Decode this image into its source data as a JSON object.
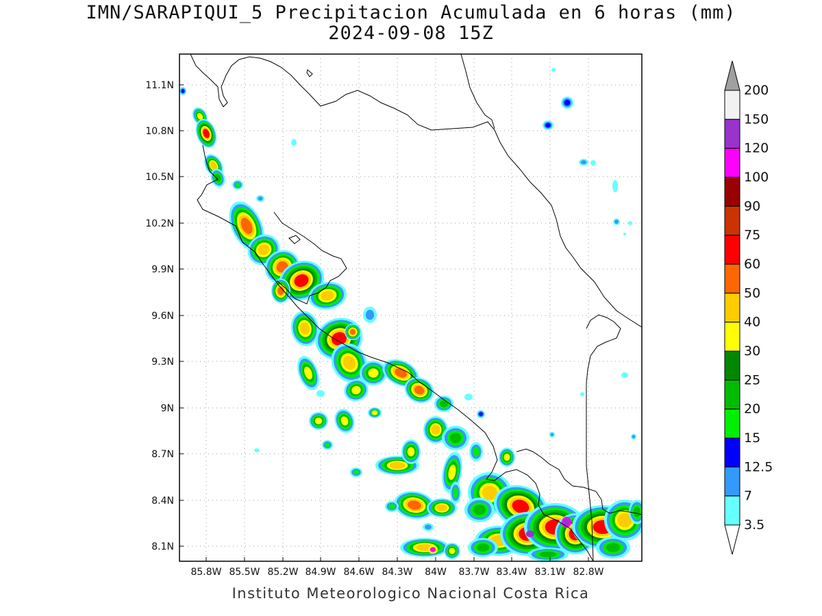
{
  "title_line1": "IMN/SARAPIQUI_5 Precipitacion Acumulada en 6 horas (mm)",
  "title_line2": "2024-09-08 15Z",
  "footer": "Instituto Meteorologico Nacional Costa Rica",
  "map": {
    "lat_labels": [
      "11.1N",
      "10.8N",
      "10.5N",
      "10.2N",
      "9.9N",
      "9.6N",
      "9.3N",
      "9N",
      "8.7N",
      "8.4N",
      "8.1N"
    ],
    "lon_labels": [
      "85.8W",
      "85.5W",
      "85.2W",
      "84.9W",
      "84.6W",
      "84.3W",
      "84W",
      "83.7W",
      "83.4W",
      "83.1W",
      "82.8W"
    ]
  },
  "colorbar": {
    "labels": [
      "200",
      "150",
      "120",
      "100",
      "90",
      "75",
      "60",
      "50",
      "40",
      "30",
      "25",
      "20",
      "15",
      "12.5",
      "7",
      "3.5"
    ],
    "colors": [
      "#f2f2f2",
      "#9933cc",
      "#ff00ff",
      "#990000",
      "#cc3300",
      "#ff0000",
      "#ff6600",
      "#ffcc00",
      "#ffff00",
      "#008800",
      "#00bb00",
      "#00ee00",
      "#0000ff",
      "#3399ff",
      "#66ffff"
    ],
    "over_color": "#a0a0a0",
    "under_color": "#ffffff"
  }
}
